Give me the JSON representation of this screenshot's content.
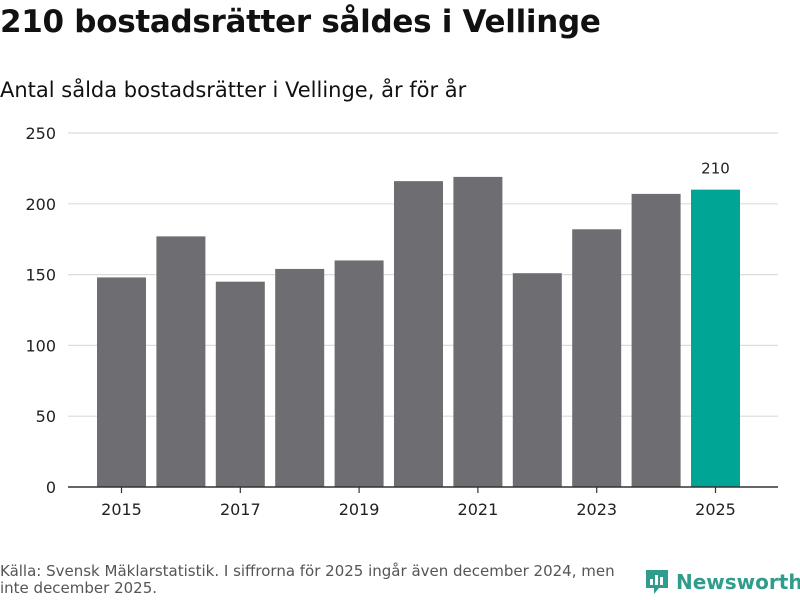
{
  "header": {
    "title": "210 bostadsrätter såldes i Vellinge",
    "subtitle": "Antal sålda bostadsrätter i Vellinge, år för år"
  },
  "chart_data": {
    "type": "bar",
    "title": "210 bostadsrätter såldes i Vellinge",
    "subtitle": "Antal sålda bostadsrätter i Vellinge, år för år",
    "categories": [
      "2015",
      "2016",
      "2017",
      "2018",
      "2019",
      "2020",
      "2021",
      "2022",
      "2023",
      "2024",
      "2025"
    ],
    "values": [
      148,
      177,
      145,
      154,
      160,
      216,
      219,
      151,
      182,
      207,
      210
    ],
    "x_tick_labels": [
      "2015",
      "2017",
      "2019",
      "2021",
      "2023",
      "2025"
    ],
    "y_ticks": [
      0,
      50,
      100,
      150,
      200,
      250
    ],
    "ylim": [
      0,
      250
    ],
    "xlabel": "",
    "ylabel": "",
    "grid": true,
    "highlight_index": 10,
    "data_labels": [
      {
        "index": 10,
        "text": "210"
      }
    ],
    "colors": {
      "bar": "#6e6d72",
      "highlight": "#00a596",
      "grid": "#dcdcdc",
      "axis": "#333333"
    }
  },
  "footer": {
    "source": "Källa: Svensk Mäklarstatistik. I siffrorna för 2025 ingår även december 2024, men inte december 2025."
  },
  "brand": {
    "name": "Newsworthy",
    "icon": "newsworthy-logo-icon",
    "color": "#2f9c8c"
  }
}
